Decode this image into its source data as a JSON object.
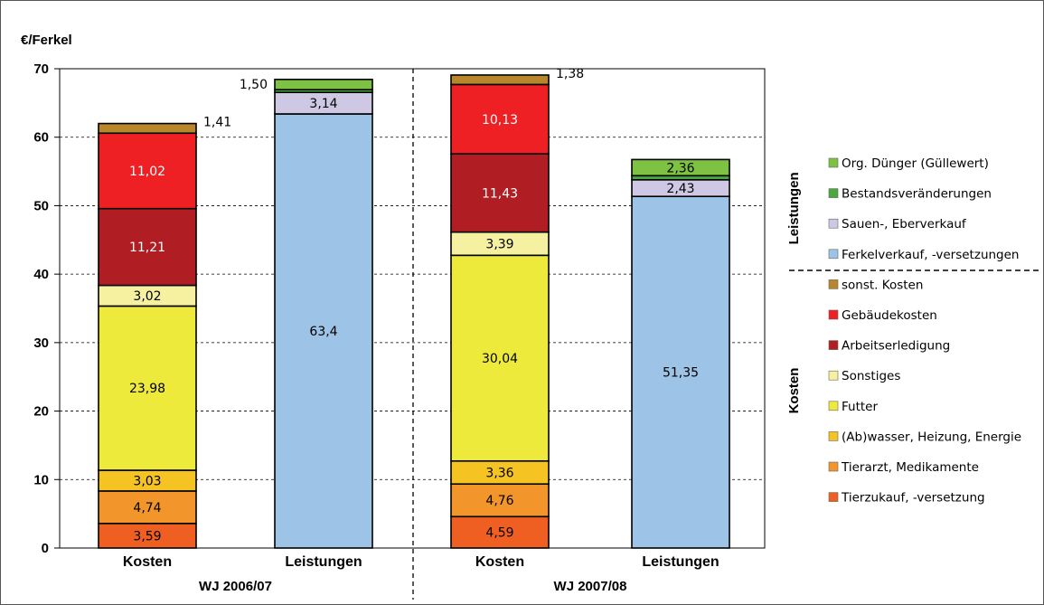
{
  "chart_data": {
    "type": "bar",
    "stacked": true,
    "ylabel": "€/Ferkel",
    "ylim": [
      0,
      70
    ],
    "yticks": [
      0,
      10,
      20,
      30,
      40,
      50,
      60,
      70
    ],
    "grid": "horizontal dashed",
    "groups": [
      {
        "label": "WJ 2006/07",
        "bars": [
          {
            "label": "Kosten",
            "segments": [
              {
                "series": "Tierzukauf, -versetzung",
                "value": 3.59,
                "text": "3,59"
              },
              {
                "series": "Tierarzt, Medikamente",
                "value": 4.74,
                "text": "4,74"
              },
              {
                "series": "(Ab)wasser, Heizung, Energie",
                "value": 3.03,
                "text": "3,03"
              },
              {
                "series": "Futter",
                "value": 23.98,
                "text": "23,98"
              },
              {
                "series": "Sonstiges",
                "value": 3.02,
                "text": "3,02"
              },
              {
                "series": "Arbeitserledigung",
                "value": 11.21,
                "text": "11,21"
              },
              {
                "series": "Gebäudekosten",
                "value": 11.02,
                "text": "11,02"
              },
              {
                "series": "sonst. Kosten",
                "value": 1.41,
                "text": "1,41"
              }
            ]
          },
          {
            "label": "Leistungen",
            "segments": [
              {
                "series": "Ferkelverkauf, -versetzungen",
                "value": 63.4,
                "text": "63,4"
              },
              {
                "series": "Sauen-, Eberverkauf",
                "value": 3.14,
                "text": "3,14"
              },
              {
                "series": "Bestandsveränderungen",
                "value": 0.4,
                "text": ""
              },
              {
                "series": "Org. Dünger (Güllewert)",
                "value": 1.5,
                "text": "1,50"
              }
            ]
          }
        ]
      },
      {
        "label": "WJ 2007/08",
        "bars": [
          {
            "label": "Kosten",
            "segments": [
              {
                "series": "Tierzukauf, -versetzung",
                "value": 4.59,
                "text": "4,59"
              },
              {
                "series": "Tierarzt, Medikamente",
                "value": 4.76,
                "text": "4,76"
              },
              {
                "series": "(Ab)wasser, Heizung, Energie",
                "value": 3.36,
                "text": "3,36"
              },
              {
                "series": "Futter",
                "value": 30.04,
                "text": "30,04"
              },
              {
                "series": "Sonstiges",
                "value": 3.39,
                "text": "3,39"
              },
              {
                "series": "Arbeitserledigung",
                "value": 11.43,
                "text": "11,43"
              },
              {
                "series": "Gebäudekosten",
                "value": 10.13,
                "text": "10,13"
              },
              {
                "series": "sonst. Kosten",
                "value": 1.38,
                "text": "1,38"
              }
            ]
          },
          {
            "label": "Leistungen",
            "segments": [
              {
                "series": "Ferkelverkauf, -versetzungen",
                "value": 51.35,
                "text": "51,35"
              },
              {
                "series": "Sauen-, Eberverkauf",
                "value": 2.43,
                "text": "2,43"
              },
              {
                "series": "Bestandsveränderungen",
                "value": 0.6,
                "text": ""
              },
              {
                "series": "Org. Dünger (Güllewert)",
                "value": 2.36,
                "text": "2,36"
              }
            ]
          }
        ]
      }
    ],
    "legend": {
      "position": "right",
      "sections": [
        {
          "title": "Leistungen",
          "items": [
            {
              "name": "Org. Dünger (Güllewert)",
              "color": "#7dc242"
            },
            {
              "name": "Bestandsveränderungen",
              "color": "#4aa83e"
            },
            {
              "name": "Sauen-, Eberverkauf",
              "color": "#cfc8e4"
            },
            {
              "name": "Ferkelverkauf, -versetzungen",
              "color": "#9dc3e6"
            }
          ]
        },
        {
          "title": "Kosten",
          "items": [
            {
              "name": "sonst. Kosten",
              "color": "#b8862b"
            },
            {
              "name": "Gebäudekosten",
              "color": "#ee2024"
            },
            {
              "name": "Arbeitserledigung",
              "color": "#b01e23"
            },
            {
              "name": "Sonstiges",
              "color": "#f5f1a0"
            },
            {
              "name": "Futter",
              "color": "#eeea3c"
            },
            {
              "name": "(Ab)wasser, Heizung, Energie",
              "color": "#f5c422"
            },
            {
              "name": "Tierarzt, Medikamente",
              "color": "#f2952a"
            },
            {
              "name": "Tierzukauf, -versetzung",
              "color": "#f05f22"
            }
          ]
        }
      ]
    }
  }
}
